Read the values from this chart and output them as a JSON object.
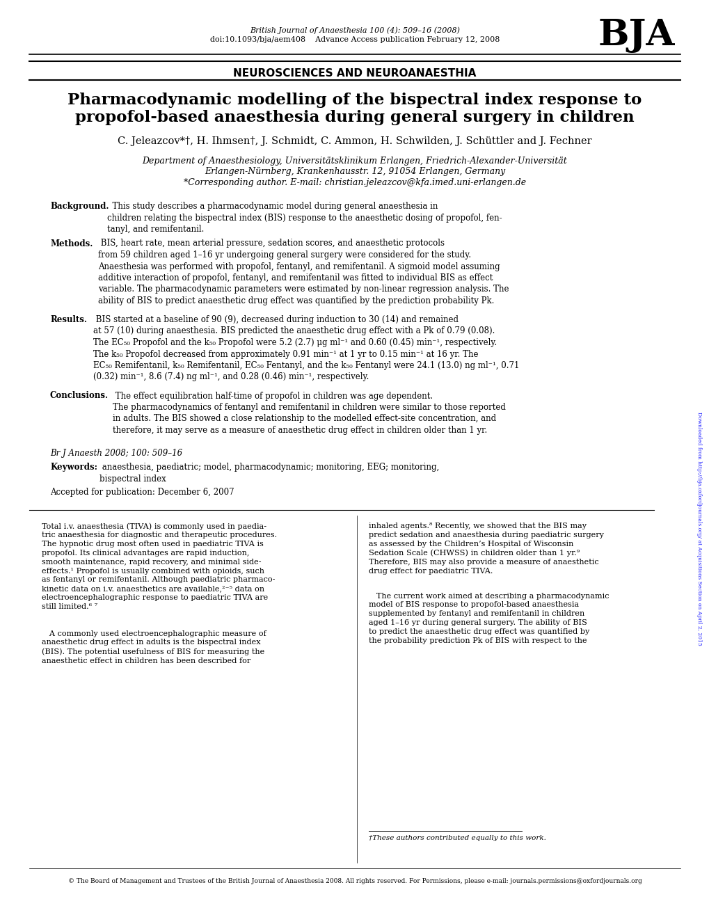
{
  "header_journal": "British Journal of Anaesthesia 100 (4): 509–16 (2008)",
  "header_doi": "doi:10.1093/bja/aem408    Advance Access publication February 12, 2008",
  "bja_logo": "BJA",
  "section": "NEUROSCIENCES AND NEUROANAESTHIA",
  "title_line1": "Pharmacodynamic modelling of the bispectral index response to",
  "title_line2": "propofol-based anaesthesia during general surgery in children",
  "authors": "C. Jeleazcov*†, H. Ihmsen†, J. Schmidt, C. Ammon, H. Schwilden, J. Schüttler and J. Fechner",
  "affiliation1": "Department of Anaesthesiology, Universitätsklinikum Erlangen, Friedrich-Alexander-Universität",
  "affiliation2": "Erlangen-Nürnberg, Krankenhausstr. 12, 91054 Erlangen, Germany",
  "affiliation3": "*Corresponding author. E-mail: christian.jeleazcov@kfa.imed.uni-erlangen.de",
  "bg_label": "Background.",
  "bg_text": "  This study describes a pharmacodynamic model during general anaesthesia in\nchildren relating the bispectral index (BIS) response to the anaesthetic dosing of propofol, fen-\ntanyl, and remifentanil.",
  "meth_label": "Methods.",
  "meth_text": " BIS, heart rate, mean arterial pressure, sedation scores, and anaesthetic protocols\nfrom 59 children aged 1–16 yr undergoing general surgery were considered for the study.\nAnaesthesia was performed with propofol, fentanyl, and remifentanil. A sigmoid model assuming\nadditive interaction of propofol, fentanyl, and remifentanil was fitted to individual BIS as effect\nvariable. The pharmacodynamic parameters were estimated by non-linear regression analysis. The\nability of BIS to predict anaesthetic drug effect was quantified by the prediction probability Pk.",
  "res_label": "Results.",
  "res_text": " BIS started at a baseline of 90 (9), decreased during induction to 30 (14) and remained\nat 57 (10) during anaesthesia. BIS predicted the anaesthetic drug effect with a Pk of 0.79 (0.08).\nThe EC₅₀ Propofol and the k₅₀ Propofol were 5.2 (2.7) μg ml⁻¹ and 0.60 (0.45) min⁻¹, respectively.\nThe k₅₀ Propofol decreased from approximately 0.91 min⁻¹ at 1 yr to 0.15 min⁻¹ at 16 yr. The\nEC₅₀ Remifentanil, k₅₀ Remifentanil, EC₅₀ Fentanyl, and the k₅₀ Fentanyl were 24.1 (13.0) ng ml⁻¹, 0.71\n(0.32) min⁻¹, 8.6 (7.4) ng ml⁻¹, and 0.28 (0.46) min⁻¹, respectively.",
  "conc_label": "Conclusions.",
  "conc_text": " The effect equilibration half-time of propofol in children was age dependent.\nThe pharmacodynamics of fentanyl and remifentanil in children were similar to those reported\nin adults. The BIS showed a close relationship to the modelled effect-site concentration, and\ntherefore, it may serve as a measure of anaesthetic drug effect in children older than 1 yr.",
  "citation": "Br J Anaesth 2008; 100: 509–16",
  "keywords_label": "Keywords:",
  "keywords_text": " anaesthesia, paediatric; model, pharmacodynamic; monitoring, EEG; monitoring,\nbispectral index",
  "accepted": "Accepted for publication: December 6, 2007",
  "col1_p1": "Total i.v. anaesthesia (TIVA) is commonly used in paedia-\ntric anaesthesia for diagnostic and therapeutic procedures.\nThe hypnotic drug most often used in paediatric TIVA is\npropofol. Its clinical advantages are rapid induction,\nsmooth maintenance, rapid recovery, and minimal side-\neffects.¹ Propofol is usually combined with opioids, such\nas fentanyl or remifentanil. Although paediatric pharmaco-\nkinetic data on i.v. anaesthetics are available,²⁻⁵ data on\nelectroencephalographic response to paediatric TIVA are\nstill limited.⁶ ⁷",
  "col1_p2": "   A commonly used electroencephalographic measure of\nanaesthetic drug effect in adults is the bispectral index\n(BIS). The potential usefulness of BIS for measuring the\nanaesthetic effect in children has been described for",
  "col2_p1": "inhaled agents.⁸ Recently, we showed that the BIS may\npredict sedation and anaesthesia during paediatric surgery\nas assessed by the Children’s Hospital of Wisconsin\nSedation Scale (CHWSS) in children older than 1 yr.⁹\nTherefore, BIS may also provide a measure of anaesthetic\ndrug effect for paediatric TIVA.",
  "col2_p2": "   The current work aimed at describing a pharmacodynamic\nmodel of BIS response to propofol-based anaesthesia\nsupplemented by fentanyl and remifentanil in children\naged 1–16 yr during general surgery. The ability of BIS\nto predict the anaesthetic drug effect was quantified by\nthe probability prediction Pk of BIS with respect to the",
  "footnote_line": "————————————————————",
  "footnote_dagger": "†These authors contributed equally to this work.",
  "sidebar_text": "Downloaded from http://bja.oxfordjournals.org/ at Acquisitions Section on April 2, 2015",
  "copyright": "© The Board of Management and Trustees of the British Journal of Anaesthesia 2008. All rights reserved. For Permissions, please e-mail: journals.permissions@oxfordjournals.org"
}
